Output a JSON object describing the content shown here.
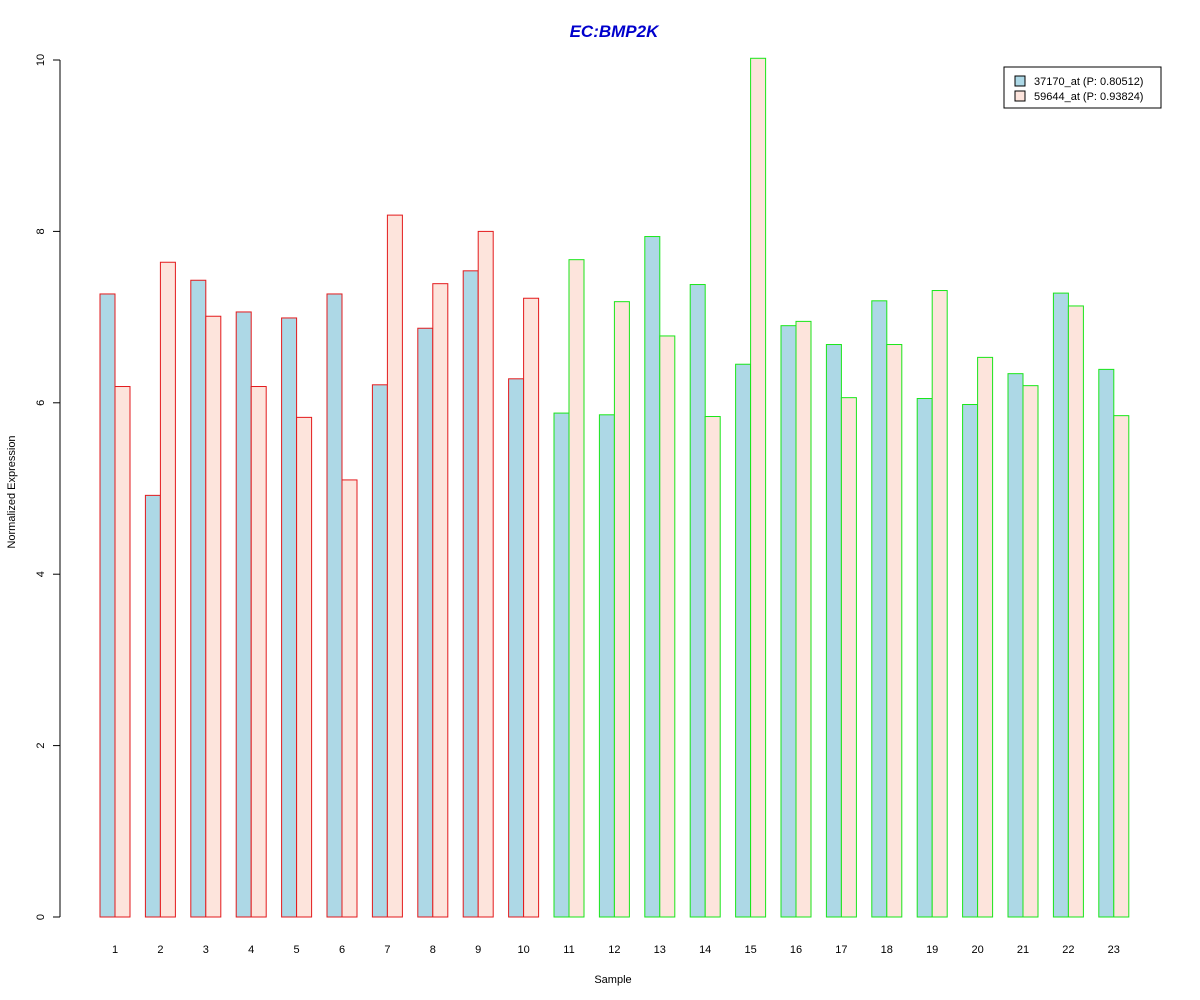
{
  "chart_data": {
    "type": "bar",
    "title": "EC:BMP2K",
    "xlabel": "Sample",
    "ylabel": "Normalized Expression",
    "ylim": [
      0,
      10
    ],
    "yticks": [
      0,
      2,
      4,
      6,
      8,
      10
    ],
    "categories": [
      "1",
      "2",
      "3",
      "4",
      "5",
      "6",
      "7",
      "8",
      "9",
      "10",
      "11",
      "12",
      "13",
      "14",
      "15",
      "16",
      "17",
      "18",
      "19",
      "20",
      "21",
      "22",
      "23"
    ],
    "groups": [
      1,
      1,
      1,
      1,
      1,
      1,
      1,
      1,
      1,
      1,
      2,
      2,
      2,
      2,
      2,
      2,
      2,
      2,
      2,
      2,
      2,
      2,
      2
    ],
    "series": [
      {
        "name": "37170_at (P: 0.80512)",
        "fill": "#add8e6",
        "values": [
          7.27,
          4.92,
          7.43,
          7.06,
          6.99,
          7.27,
          6.21,
          6.87,
          7.54,
          6.28,
          5.88,
          5.86,
          7.94,
          7.38,
          6.45,
          6.9,
          6.68,
          7.19,
          6.05,
          5.98,
          6.34,
          7.28,
          6.39
        ]
      },
      {
        "name": "59644_at (P: 0.93824)",
        "fill": "#fde4dc",
        "values": [
          6.19,
          7.64,
          7.01,
          6.19,
          5.83,
          5.1,
          8.19,
          7.39,
          8.0,
          7.22,
          7.67,
          7.18,
          6.78,
          5.84,
          10.02,
          6.95,
          6.06,
          6.68,
          7.31,
          6.53,
          6.2,
          7.13,
          5.85
        ]
      }
    ],
    "group_colors": {
      "1": "#e31a1c",
      "2": "#19e619"
    },
    "title_color": "#0000cc",
    "grid": false,
    "legend_position": "top-right"
  }
}
